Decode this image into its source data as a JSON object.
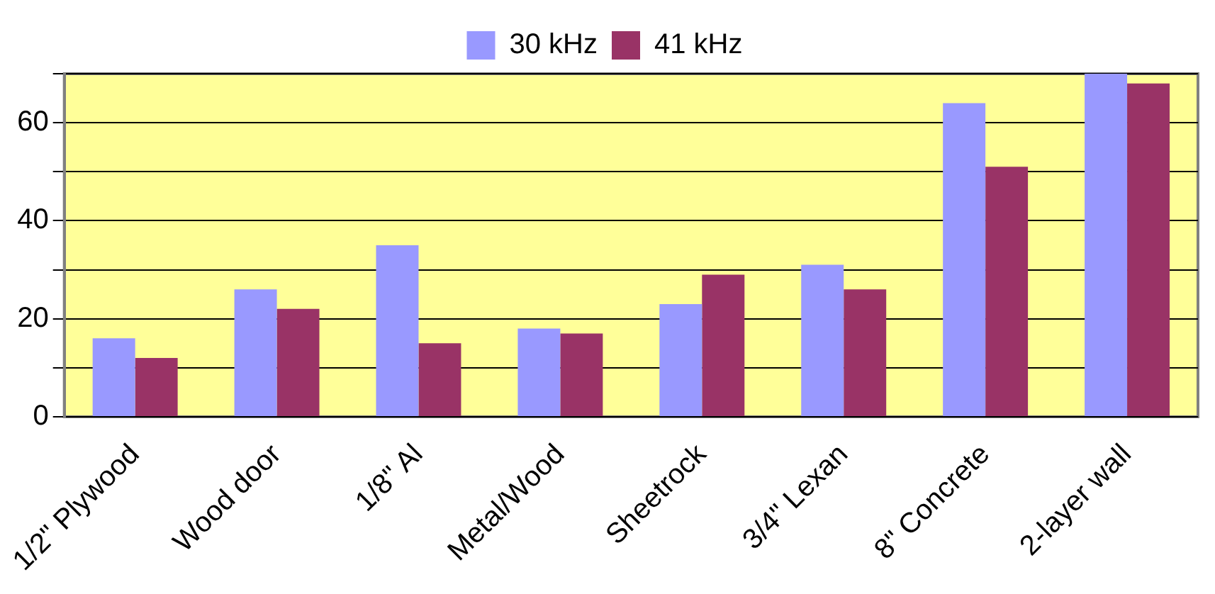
{
  "chart_data": {
    "type": "bar",
    "categories": [
      "1/2\" Plywood",
      "Wood door",
      "1/8\" Al",
      "Metal/Wood",
      "Sheetrock",
      "3/4\" Lexan",
      "8\" Concrete",
      "2-layer wall"
    ],
    "series": [
      {
        "name": "30 kHz",
        "color": "#9999ff",
        "values": [
          16,
          26,
          35,
          18,
          23,
          31,
          64,
          70
        ]
      },
      {
        "name": "41 kHz",
        "color": "#993366",
        "values": [
          12,
          22,
          15,
          17,
          29,
          26,
          51,
          68
        ]
      }
    ],
    "ylim": [
      0,
      70
    ],
    "yticks": [
      0,
      {
        "value": 10,
        "label": null
      },
      20,
      {
        "value": 30,
        "label": null
      },
      40,
      {
        "value": 50,
        "label": null
      },
      60,
      {
        "value": 70,
        "label": null
      }
    ],
    "grid": "y",
    "legend": "top"
  }
}
